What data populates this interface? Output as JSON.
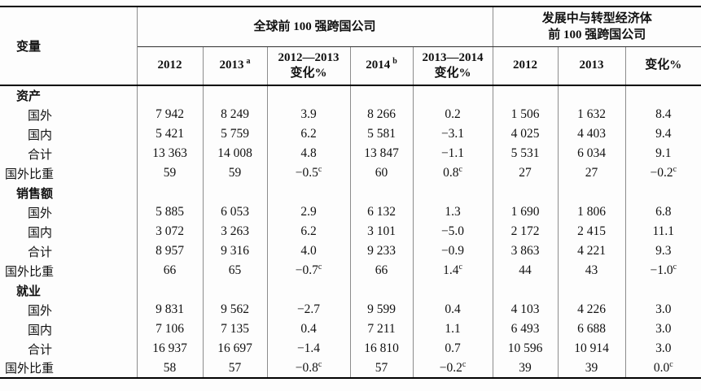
{
  "table": {
    "variable_header": "变量",
    "group1_header": "全球前 100 强跨国公司",
    "group2_header_line1": "发展中与转型经济体",
    "group2_header_line2": "前 100 强跨国公司",
    "subheaders": [
      {
        "line1": "2012",
        "sup": "",
        "line2": ""
      },
      {
        "line1": "2013",
        "sup": "a",
        "line2": ""
      },
      {
        "line1": "2012—2013",
        "sup": "",
        "line2": "变化%"
      },
      {
        "line1": "2014",
        "sup": "b",
        "line2": ""
      },
      {
        "line1": "2013—2014",
        "sup": "",
        "line2": "变化%"
      },
      {
        "line1": "2012",
        "sup": "",
        "line2": ""
      },
      {
        "line1": "2013",
        "sup": "",
        "line2": ""
      },
      {
        "line1": "变化%",
        "sup": "",
        "line2": ""
      }
    ],
    "rows": [
      {
        "type": "section",
        "label": "资产",
        "cells": []
      },
      {
        "type": "sub",
        "label": "国外",
        "cells": [
          {
            "v": "7 942"
          },
          {
            "v": "8 249"
          },
          {
            "v": "3.9"
          },
          {
            "v": "8 266"
          },
          {
            "v": "0.2"
          },
          {
            "v": "1 506"
          },
          {
            "v": "1 632"
          },
          {
            "v": "8.4"
          }
        ]
      },
      {
        "type": "sub",
        "label": "国内",
        "cells": [
          {
            "v": "5 421"
          },
          {
            "v": "5 759"
          },
          {
            "v": "6.2"
          },
          {
            "v": "5 581"
          },
          {
            "v": "−3.1"
          },
          {
            "v": "4 025"
          },
          {
            "v": "4 403"
          },
          {
            "v": "9.4"
          }
        ]
      },
      {
        "type": "sub",
        "label": "合计",
        "cells": [
          {
            "v": "13 363"
          },
          {
            "v": "14 008"
          },
          {
            "v": "4.8"
          },
          {
            "v": "13 847"
          },
          {
            "v": "−1.1"
          },
          {
            "v": "5 531"
          },
          {
            "v": "6 034"
          },
          {
            "v": "9.1"
          }
        ]
      },
      {
        "type": "ratio",
        "label": "国外比重",
        "cells": [
          {
            "v": "59"
          },
          {
            "v": "59"
          },
          {
            "v": "−0.5",
            "s": "c"
          },
          {
            "v": "60"
          },
          {
            "v": "0.8",
            "s": "c"
          },
          {
            "v": "27"
          },
          {
            "v": "27"
          },
          {
            "v": "−0.2",
            "s": "c"
          }
        ]
      },
      {
        "type": "section",
        "label": "销售额",
        "cells": []
      },
      {
        "type": "sub",
        "label": "国外",
        "cells": [
          {
            "v": "5 885"
          },
          {
            "v": "6 053"
          },
          {
            "v": "2.9"
          },
          {
            "v": "6 132"
          },
          {
            "v": "1.3"
          },
          {
            "v": "1 690"
          },
          {
            "v": "1 806"
          },
          {
            "v": "6.8"
          }
        ]
      },
      {
        "type": "sub",
        "label": "国内",
        "cells": [
          {
            "v": "3 072"
          },
          {
            "v": "3 263"
          },
          {
            "v": "6.2"
          },
          {
            "v": "3 101"
          },
          {
            "v": "−5.0"
          },
          {
            "v": "2 172"
          },
          {
            "v": "2 415"
          },
          {
            "v": "11.1"
          }
        ]
      },
      {
        "type": "sub",
        "label": "合计",
        "cells": [
          {
            "v": "8 957"
          },
          {
            "v": "9 316"
          },
          {
            "v": "4.0"
          },
          {
            "v": "9 233"
          },
          {
            "v": "−0.9"
          },
          {
            "v": "3 863"
          },
          {
            "v": "4 221"
          },
          {
            "v": "9.3"
          }
        ]
      },
      {
        "type": "ratio",
        "label": "国外比重",
        "cells": [
          {
            "v": "66"
          },
          {
            "v": "65"
          },
          {
            "v": "−0.7",
            "s": "c"
          },
          {
            "v": "66"
          },
          {
            "v": "1.4",
            "s": "c"
          },
          {
            "v": "44"
          },
          {
            "v": "43"
          },
          {
            "v": "−1.0",
            "s": "c"
          }
        ]
      },
      {
        "type": "section",
        "label": "就业",
        "cells": []
      },
      {
        "type": "sub",
        "label": "国外",
        "cells": [
          {
            "v": "9 831"
          },
          {
            "v": "9 562"
          },
          {
            "v": "−2.7"
          },
          {
            "v": "9 599"
          },
          {
            "v": "0.4"
          },
          {
            "v": "4 103"
          },
          {
            "v": "4 226"
          },
          {
            "v": "3.0"
          }
        ]
      },
      {
        "type": "sub",
        "label": "国内",
        "cells": [
          {
            "v": "7 106"
          },
          {
            "v": "7 135"
          },
          {
            "v": "0.4"
          },
          {
            "v": "7 211"
          },
          {
            "v": "1.1"
          },
          {
            "v": "6 493"
          },
          {
            "v": "6 688"
          },
          {
            "v": "3.0"
          }
        ]
      },
      {
        "type": "sub",
        "label": "合计",
        "cells": [
          {
            "v": "16 937"
          },
          {
            "v": "16 697"
          },
          {
            "v": "−1.4"
          },
          {
            "v": "16 810"
          },
          {
            "v": "0.7"
          },
          {
            "v": "10 596"
          },
          {
            "v": "10 914"
          },
          {
            "v": "3.0"
          }
        ]
      },
      {
        "type": "ratio",
        "label": "国外比重",
        "cells": [
          {
            "v": "58"
          },
          {
            "v": "57"
          },
          {
            "v": "−0.8",
            "s": "c"
          },
          {
            "v": "57"
          },
          {
            "v": "−0.2",
            "s": "c"
          },
          {
            "v": "39"
          },
          {
            "v": "39"
          },
          {
            "v": "0.0",
            "s": "c"
          }
        ]
      }
    ]
  }
}
